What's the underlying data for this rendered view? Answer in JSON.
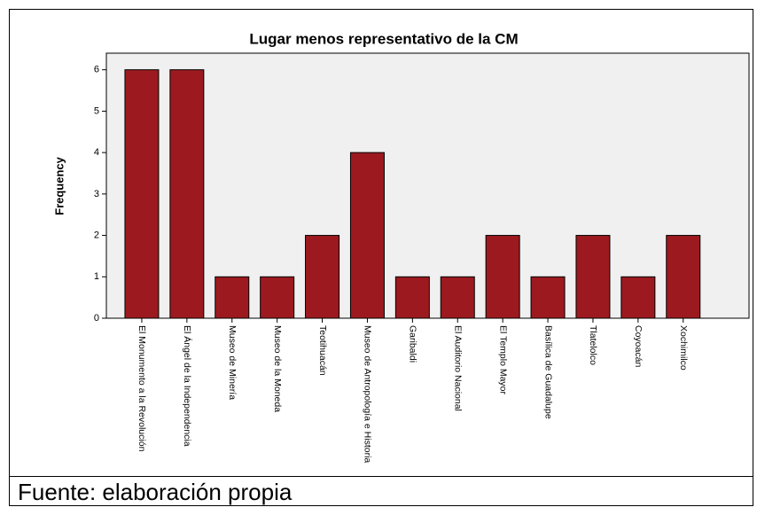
{
  "chart_data": {
    "type": "bar",
    "title": "Lugar menos representativo de la CM",
    "y_label": "Frequency",
    "categories": [
      "El Monumento a la Revolución",
      "El Ángel de la Independencia",
      "Museo de Minería",
      "Museo de la Moneda",
      "Teotihuacán",
      "Museo de Antropología e Historia",
      "Garibaldi",
      "El Auditorio Nacional",
      "El Templo Mayor",
      "Basílica de Guadalupe",
      "Tlatelolco",
      "Coyoacán",
      "Xochimilco"
    ],
    "values": [
      6,
      6,
      1,
      1,
      2,
      4,
      1,
      1,
      2,
      1,
      2,
      1,
      2
    ],
    "color": "#9c1a1f",
    "ylim": [
      0,
      6.4
    ],
    "yticks": [
      0,
      1,
      2,
      3,
      4,
      5,
      6
    ],
    "grid": false
  },
  "caption": "Fuente: elaboración propia"
}
